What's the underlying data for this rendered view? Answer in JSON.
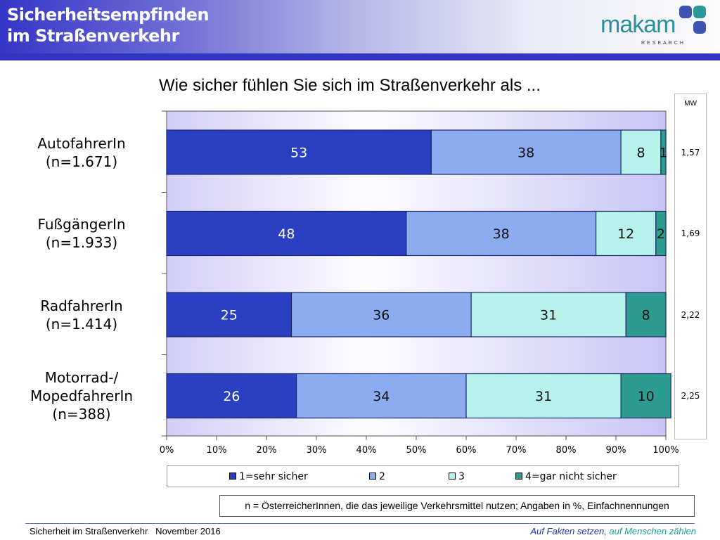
{
  "header": {
    "title_line1": "Sicherheitsempfinden",
    "title_line2": "im Straßenverkehr",
    "logo_text": "makam",
    "logo_sub": "RESEARCH"
  },
  "chart_data": {
    "type": "bar",
    "stacked": true,
    "orientation": "horizontal",
    "title": "Wie sicher fühlen Sie sich im Straßenverkehr als ...",
    "categories": [
      [
        "AutofahrerIn",
        "(n=1.671)"
      ],
      [
        "FußgängerIn",
        "(n=1.933)"
      ],
      [
        "RadfahrerIn",
        "(n=1.414)"
      ],
      [
        "Motorrad-/",
        "MopedfahrerIn",
        "(n=388)"
      ]
    ],
    "series": [
      {
        "name": "1=sehr sicher",
        "color": "#2b3fc2",
        "values": [
          53,
          48,
          25,
          26
        ]
      },
      {
        "name": "2",
        "color": "#8cacf2",
        "values": [
          38,
          38,
          36,
          34
        ]
      },
      {
        "name": "3",
        "color": "#b6f1ec",
        "values": [
          8,
          12,
          31,
          31
        ]
      },
      {
        "name": "4=gar nicht sicher",
        "color": "#2c9c90",
        "values": [
          1,
          2,
          8,
          10
        ]
      }
    ],
    "xlim": [
      0,
      100
    ],
    "xticks": [
      "0%",
      "10%",
      "20%",
      "30%",
      "40%",
      "50%",
      "60%",
      "70%",
      "80%",
      "90%",
      "100%"
    ],
    "legend_position": "bottom",
    "mw_header": "MW",
    "mw_values": [
      "1,57",
      "1,69",
      "2,22",
      "2,25"
    ]
  },
  "note": "n = ÖsterreicherInnen, die das jeweilige Verkehrsmittel nutzen; Angaben in %, Einfachnennungen",
  "footer": {
    "left": "Sicherheit im Straßenverkehr   November 2016",
    "right_part1": "Auf Fakten setzen,",
    "right_part2": " auf Menschen zählen"
  }
}
